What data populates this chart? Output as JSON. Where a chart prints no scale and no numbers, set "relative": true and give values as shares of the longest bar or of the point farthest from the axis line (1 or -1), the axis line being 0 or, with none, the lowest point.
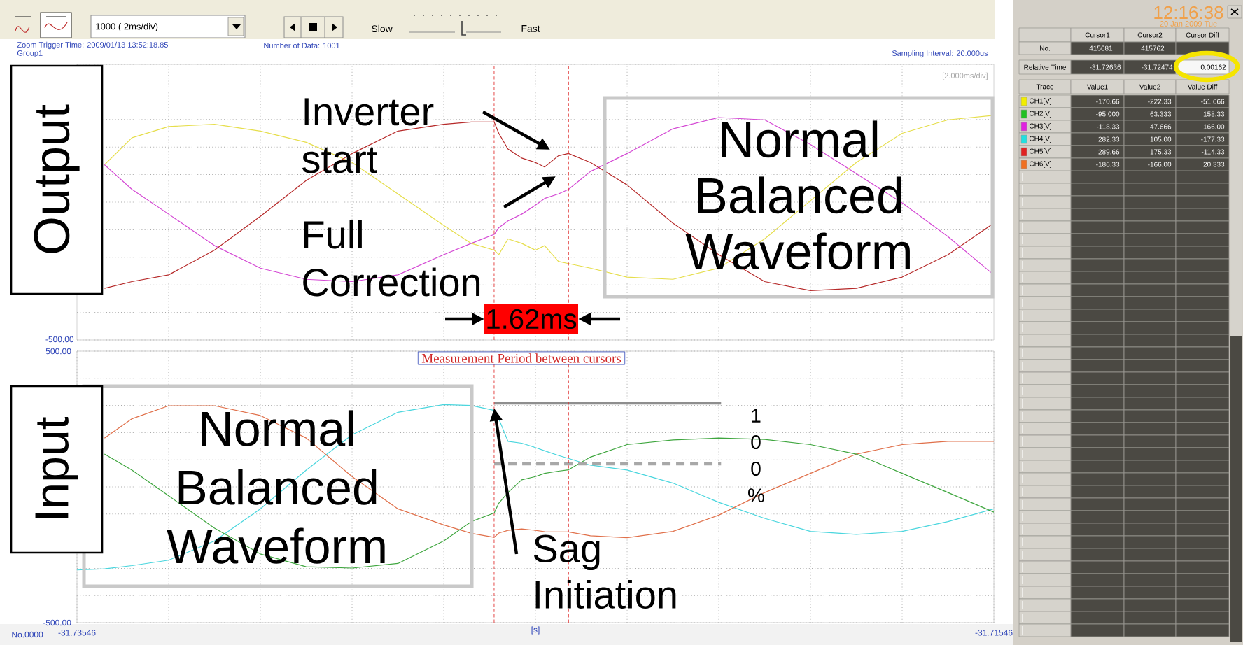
{
  "chart_data": [
    {
      "type": "line",
      "ylabel": "Output",
      "relative": true,
      "x": [
        -31.73486,
        -31.73426,
        -31.73346,
        -31.73246,
        -31.73146,
        -31.73046,
        -31.72946,
        -31.72846,
        -31.72746,
        -31.72686,
        -31.72636,
        -31.72626,
        -31.72606,
        -31.72576,
        -31.72546,
        -31.72526,
        -31.72496,
        -31.72474,
        -31.72426,
        -31.72346,
        -31.72246,
        -31.72146,
        -31.72046,
        -31.71946,
        -31.71846,
        -31.71746,
        -31.71646,
        -31.71546
      ],
      "series": [
        {
          "color": "#e6de4c",
          "values": [
            0.78,
            0.9,
            0.95,
            0.96,
            0.93,
            0.88,
            0.79,
            0.65,
            0.51,
            0.43,
            0.4,
            0.38,
            0.45,
            0.43,
            0.4,
            0.42,
            0.35,
            0.34,
            0.32,
            0.28,
            0.27,
            0.32,
            0.45,
            0.62,
            0.79,
            0.92,
            0.98,
            1.0
          ]
        },
        {
          "color": "#d448d4",
          "values": [
            0.78,
            0.67,
            0.56,
            0.42,
            0.32,
            0.27,
            0.26,
            0.29,
            0.38,
            0.43,
            0.47,
            0.5,
            0.53,
            0.56,
            0.6,
            0.63,
            0.65,
            0.67,
            0.75,
            0.83,
            0.94,
            0.99,
            0.98,
            0.87,
            0.74,
            0.61,
            0.46,
            0.29
          ]
        },
        {
          "color": "#b62a2a",
          "values": [
            0.23,
            0.26,
            0.29,
            0.4,
            0.55,
            0.71,
            0.83,
            0.93,
            0.96,
            0.97,
            0.97,
            0.92,
            0.85,
            0.81,
            0.79,
            0.77,
            0.82,
            0.83,
            0.79,
            0.69,
            0.52,
            0.38,
            0.26,
            0.22,
            0.23,
            0.28,
            0.38,
            0.52
          ]
        }
      ],
      "xlim": [
        -31.73546,
        -31.71546
      ],
      "xticks": [
        -31.73346,
        -31.73146,
        -31.72946,
        -31.72746,
        -31.72546,
        -31.72346,
        -31.72146,
        -31.71946,
        -31.71746
      ],
      "tick_labels": false,
      "grid": true,
      "ref_lines": [
        {
          "axis": "x",
          "value": -31.72636,
          "color": "#e03030",
          "line_style": "dashed"
        },
        {
          "axis": "x",
          "value": -31.72474,
          "color": "#e03030",
          "line_style": "dashed"
        }
      ],
      "annotations": [
        "1000 ( 2ms/div)",
        "Slow",
        "Fast",
        "Zoom Trigger Time: 2009/01/13 13:52:18.85",
        "Group1",
        "Number of Data: 1001",
        "Sampling Interval: 20.000us",
        "[2.000ms/div]",
        "Inverter start",
        "Full Correction",
        "Normal Balanced Waveform",
        "1.62ms",
        "-500.00"
      ]
    },
    {
      "type": "line",
      "ylabel": "Input",
      "xlabel": "[s]",
      "x": [
        -31.73486,
        -31.73426,
        -31.73346,
        -31.73246,
        -31.73146,
        -31.73046,
        -31.72946,
        -31.72846,
        -31.72746,
        -31.72686,
        -31.72636,
        -31.72626,
        -31.72606,
        -31.72576,
        -31.72546,
        -31.72526,
        -31.72496,
        -31.72474,
        -31.72426,
        -31.72346,
        -31.72246,
        -31.72146,
        -31.72046,
        -31.71946,
        -31.71846,
        -31.71746,
        -31.71646,
        -31.71546
      ],
      "series": [
        {
          "color": "#4ad6de",
          "x": [
            -31.73546,
            -31.73486,
            -31.73426,
            -31.73346,
            -31.73246,
            -31.73146,
            -31.73046,
            -31.72946,
            -31.72846,
            -31.72746,
            -31.72686,
            -31.72636,
            -31.72626,
            -31.72606,
            -31.72576,
            -31.72546,
            -31.72526,
            -31.72496,
            -31.72474,
            -31.72426,
            -31.72346,
            -31.72246,
            -31.72146,
            -31.72046,
            -31.71946,
            -31.71846,
            -31.71746,
            -31.71646,
            -31.71546
          ],
          "values": [
            -306,
            -302,
            -290,
            -270,
            -199,
            -81,
            62,
            192,
            275,
            303,
            300,
            282,
            251,
            168,
            161,
            145,
            133,
            116,
            105,
            80,
            62,
            14,
            -57,
            -116,
            -164,
            -175,
            -164,
            -128,
            -81
          ]
        },
        {
          "color": "#e0704a",
          "values": [
            180,
            251,
            299,
            299,
            263,
            180,
            38,
            -81,
            -140,
            -171,
            -186,
            -170,
            -160,
            -155,
            -160,
            -165,
            -166,
            -166,
            -180,
            -187,
            -164,
            -104,
            -21,
            50,
            121,
            156,
            168,
            168
          ]
        },
        {
          "color": "#3fa63f",
          "values": [
            121,
            62,
            -33,
            -152,
            -247,
            -294,
            -299,
            -282,
            -199,
            -128,
            -96,
            -60,
            -21,
            26,
            38,
            50,
            58,
            63,
            110,
            156,
            173,
            180,
            175,
            156,
            121,
            50,
            -21,
            -93
          ]
        },
        {
          "color": "#8e8e8e",
          "x": [
            -31.72636,
            -31.72141
          ],
          "values": [
            309,
            309
          ]
        },
        {
          "color": "#a8a8a8",
          "line_style": "dashed",
          "x": [
            -31.72636,
            -31.72141
          ],
          "values": [
            85,
            85
          ]
        }
      ],
      "xlim": [
        -31.73546,
        -31.71546
      ],
      "xticks": [
        -31.73546,
        {
          "value": -31.73346,
          "label": null
        },
        {
          "value": -31.73146,
          "label": null
        },
        {
          "value": -31.72946,
          "label": null
        },
        {
          "value": -31.72746,
          "label": null
        },
        {
          "value": -31.72546,
          "label": null
        },
        {
          "value": -31.72346,
          "label": null
        },
        {
          "value": -31.72146,
          "label": null
        },
        {
          "value": -31.71946,
          "label": null
        },
        {
          "value": -31.71746,
          "label": null
        },
        -31.71546
      ],
      "ylim": [
        -500,
        500
      ],
      "yticks": [
        {
          "value": 500,
          "label": "500.00"
        },
        {
          "value": 400,
          "label": null
        },
        {
          "value": 300,
          "label": null
        },
        {
          "value": 200,
          "label": null
        },
        {
          "value": 100,
          "label": null
        },
        {
          "value": 0,
          "label": null
        },
        {
          "value": -100,
          "label": null
        },
        {
          "value": -200,
          "label": null
        },
        {
          "value": -300,
          "label": null
        },
        {
          "value": -400,
          "label": null
        },
        {
          "value": -500,
          "label": "-500.00"
        }
      ],
      "grid": true,
      "ref_lines": [
        {
          "axis": "x",
          "value": -31.72636,
          "color": "#e03030",
          "line_style": "dashed"
        },
        {
          "axis": "x",
          "value": -31.72474,
          "color": "#e03030",
          "line_style": "dashed"
        }
      ],
      "annotations": [
        "Measurement Period between cursors",
        "Normal Balanced Waveform",
        "1 0 0 %",
        {
          "text": "Sag Initiation",
          "x": -31.72636,
          "y": 290
        },
        "No.0000"
      ]
    },
    {
      "type": "other",
      "categories": [
        "CH1[V]",
        "CH2[V]",
        "CH3[V]",
        "CH4[V]",
        "CH5[V]",
        "CH6[V]"
      ],
      "colors": [
        "#f2ee00",
        "#22c022",
        "#e022e0",
        "#22e0e0",
        "#e02222",
        "#f07022"
      ],
      "series": [
        {
          "name": "Value1",
          "values": [
            -170.66,
            -95.0,
            -118.33,
            282.33,
            289.66,
            -186.33
          ],
          "value_labels": [
            "-170.66",
            "-95.000",
            "-118.33",
            "282.33",
            "289.66",
            "-186.33"
          ]
        },
        {
          "name": "Value2",
          "values": [
            -222.33,
            63.333,
            47.666,
            105.0,
            175.33,
            -166.0
          ],
          "value_labels": [
            "-222.33",
            "63.333",
            "47.666",
            "105.00",
            "175.33",
            "-166.00"
          ]
        },
        {
          "name": "Value Diff",
          "values": [
            -51.666,
            158.33,
            166.0,
            -177.33,
            -114.33,
            20.333
          ],
          "value_labels": [
            "-51.666",
            "158.33",
            "166.00",
            "-177.33",
            "-114.33",
            "20.333"
          ]
        }
      ],
      "annotations": [
        "Cursor1",
        "Cursor2",
        "Cursor Diff",
        "No.",
        "415681",
        "415762",
        "Relative Time",
        "-31.72636",
        "-31.72474",
        "0.00162",
        "Trace",
        "12:16:38",
        "20 Jan 2009 Tue"
      ]
    }
  ]
}
